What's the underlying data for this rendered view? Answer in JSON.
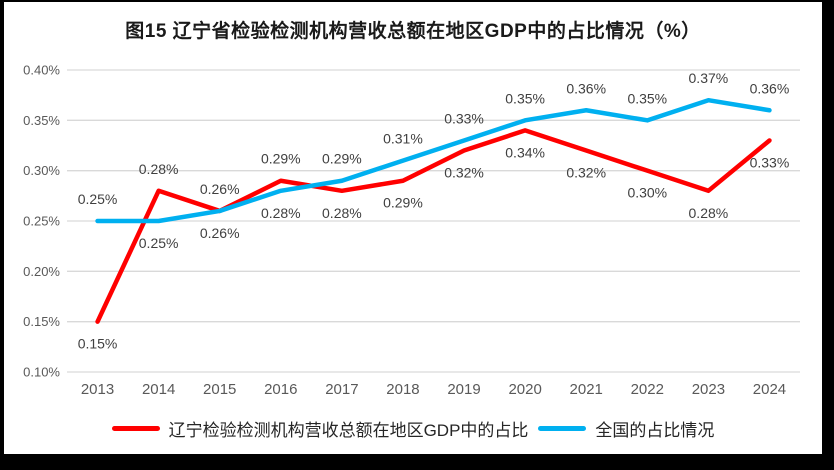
{
  "frame": {
    "border_color": "#000000",
    "canvas_color": "#ffffff"
  },
  "chart_data": {
    "type": "line",
    "title": "图15 辽宁省检验检测机构营收总额在地区GDP中的占比情况（%）",
    "categories": [
      "2013",
      "2014",
      "2015",
      "2016",
      "2017",
      "2018",
      "2019",
      "2020",
      "2021",
      "2022",
      "2023",
      "2024"
    ],
    "series": [
      {
        "key": "liaoning",
        "name": "辽宁检验检测机构营收总额在地区GDP中的占比",
        "color": "#FF0000",
        "values": [
          0.15,
          0.28,
          0.26,
          0.29,
          0.28,
          0.29,
          0.32,
          0.34,
          0.32,
          0.3,
          0.28,
          0.33
        ],
        "point_labels": [
          "0.15%",
          "0.28%",
          "0.26%",
          "0.29%",
          "0.28%",
          "0.29%",
          "0.32%",
          "0.34%",
          "0.32%",
          "0.30%",
          "0.28%",
          "0.33%"
        ],
        "label_side": [
          "below",
          "above",
          "above",
          "above",
          "below",
          "below",
          "below",
          "below",
          "below",
          "below",
          "below",
          "below"
        ]
      },
      {
        "key": "national",
        "name": "全国的占比情况",
        "color": "#00B0F0",
        "values": [
          0.25,
          0.25,
          0.26,
          0.28,
          0.29,
          0.31,
          0.33,
          0.35,
          0.36,
          0.35,
          0.37,
          0.36
        ],
        "point_labels": [
          "0.25%",
          "0.25%",
          "0.26%",
          "0.28%",
          "0.29%",
          "0.31%",
          "0.33%",
          "0.35%",
          "0.36%",
          "0.35%",
          "0.37%",
          "0.36%"
        ],
        "label_side": [
          "above",
          "below",
          "below",
          "below",
          "above",
          "above",
          "above",
          "above",
          "above",
          "above",
          "above",
          "above"
        ]
      }
    ],
    "y_axis": {
      "tick_labels": [
        "0.10%",
        "0.15%",
        "0.20%",
        "0.25%",
        "0.30%",
        "0.35%",
        "0.40%"
      ],
      "tick_values": [
        0.1,
        0.15,
        0.2,
        0.25,
        0.3,
        0.35,
        0.4
      ],
      "min": 0.1,
      "max": 0.4
    },
    "grid": true,
    "legend_position": "bottom",
    "colors": {
      "gridline": "#D9D9D9",
      "axis_text": "#595959",
      "data_label_text": "#404040",
      "title_text": "#1A1A1A"
    }
  }
}
